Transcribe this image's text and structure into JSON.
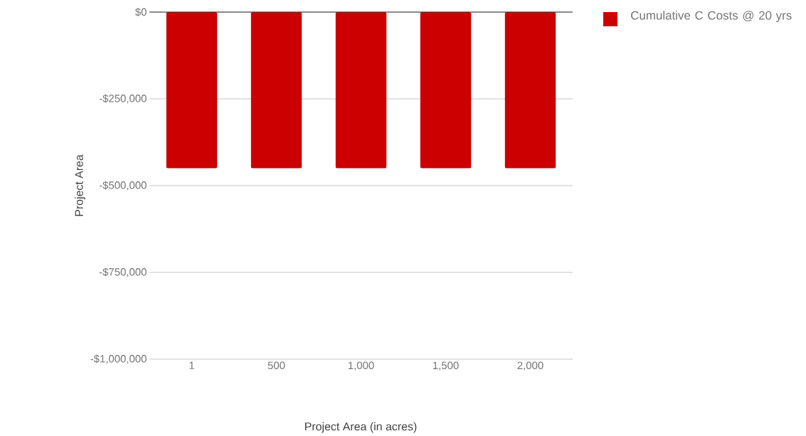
{
  "chart_data": {
    "type": "bar",
    "xlabel": "Project Area (in acres)",
    "ylabel": "Project Area",
    "categories": [
      "1",
      "500",
      "1,000",
      "1,500",
      "2,000"
    ],
    "series": [
      {
        "name": "Cumulative C Costs @ 20 yrs",
        "color": "#cc0000",
        "values": [
          -450000,
          -450000,
          -450000,
          -450000,
          -450000
        ]
      }
    ],
    "ylim": [
      -1000000,
      0
    ],
    "yticks": [
      {
        "value": -1000000,
        "label": "-$1,000,000"
      },
      {
        "value": -750000,
        "label": "-$750,000"
      },
      {
        "value": -500000,
        "label": "-$500,000"
      },
      {
        "value": -250000,
        "label": "-$250,000"
      },
      {
        "value": 0,
        "label": "$0"
      }
    ],
    "grid": "y",
    "legend": "top right"
  }
}
